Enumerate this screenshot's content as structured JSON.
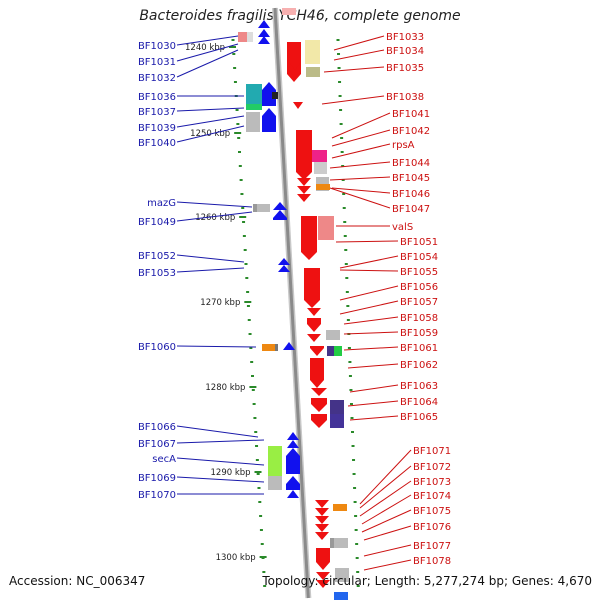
{
  "title": "Bacteroides fragilis YCH46, complete genome",
  "footer": {
    "accession": "Accession: NC_006347",
    "topology": "Topology: circular; Length: 5,277,274 bp; Genes: 4,670"
  },
  "colors": {
    "forward_strand": "#1111ee",
    "reverse_strand": "#ee1111",
    "backbone": "#a0a0a0",
    "tick": "#2a8a2a",
    "left_label": "#1a1aaa",
    "right_label": "#cc1111"
  },
  "scale_ticks": [
    "1240 kbp",
    "1250 kbp",
    "1260 kbp",
    "1270 kbp",
    "1280 kbp",
    "1290 kbp",
    "1300 kbp"
  ],
  "left_genes": [
    "BF1030",
    "BF1031",
    "BF1032",
    "BF1036",
    "BF1037",
    "BF1039",
    "BF1040",
    "mazG",
    "BF1049",
    "BF1052",
    "BF1053",
    "BF1060",
    "BF1066",
    "BF1067",
    "secA",
    "BF1069",
    "BF1070"
  ],
  "right_genes": [
    "BF1033",
    "BF1034",
    "BF1035",
    "BF1038",
    "BF1041",
    "BF1042",
    "rpsA",
    "BF1044",
    "BF1045",
    "BF1046",
    "BF1047",
    "valS",
    "BF1051",
    "BF1054",
    "BF1055",
    "BF1056",
    "BF1057",
    "BF1058",
    "BF1059",
    "BF1061",
    "BF1062",
    "BF1063",
    "BF1064",
    "BF1065",
    "BF1071",
    "BF1072",
    "BF1073",
    "BF1074",
    "BF1075",
    "BF1076",
    "BF1077",
    "BF1078"
  ]
}
